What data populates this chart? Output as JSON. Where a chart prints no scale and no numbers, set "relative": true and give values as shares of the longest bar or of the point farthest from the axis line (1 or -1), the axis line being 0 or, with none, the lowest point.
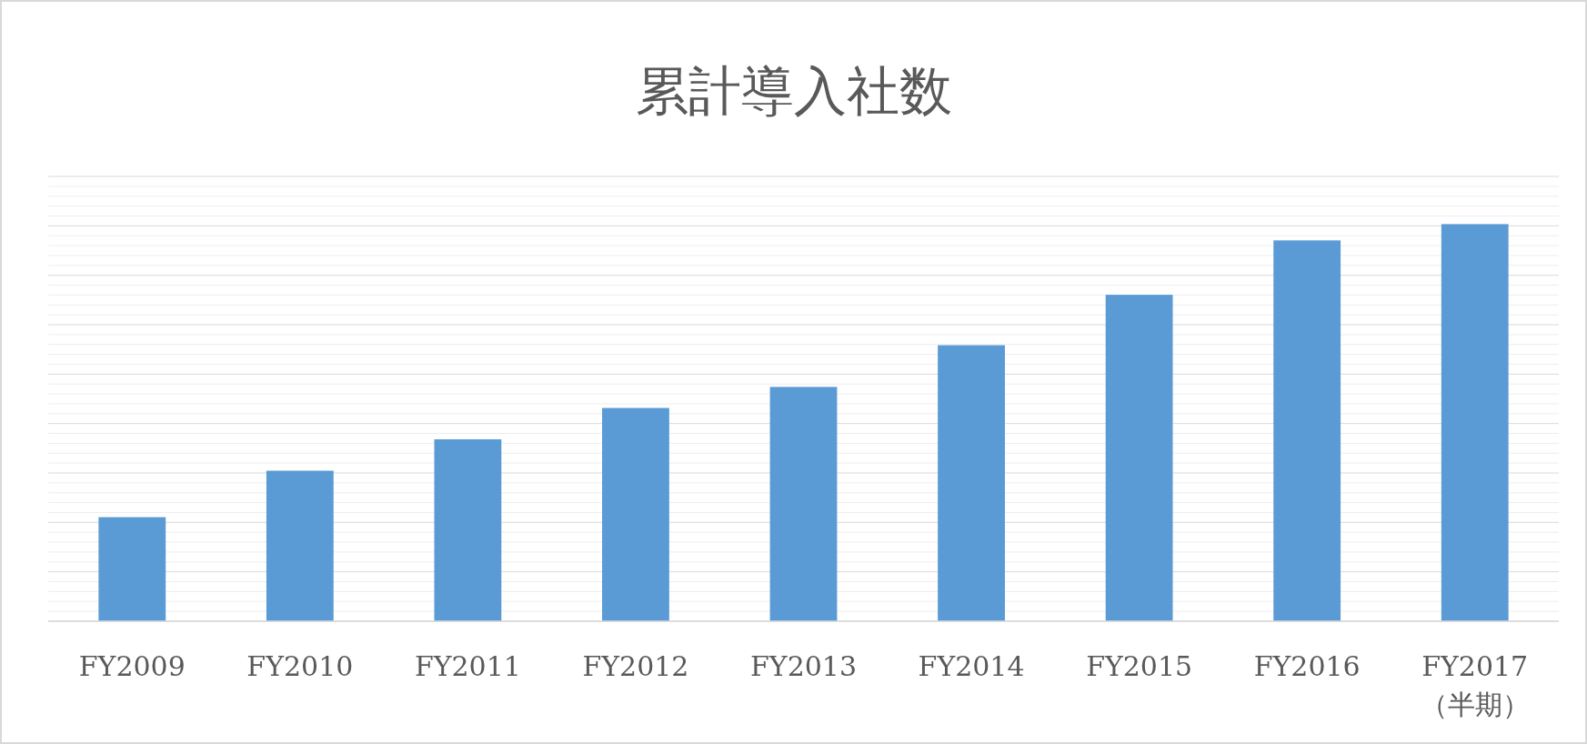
{
  "chart_data": {
    "type": "bar",
    "title": "累計導入社数",
    "relative": true,
    "grid": "y",
    "categories": [
      "FY2009",
      "FY2010",
      "FY2011",
      "FY2012",
      "FY2013",
      "FY2014",
      "FY2015",
      "FY2016",
      "FY2017\n（半期）"
    ],
    "values": [
      0.262,
      0.379,
      0.458,
      0.537,
      0.59,
      0.695,
      0.822,
      0.959,
      1
    ],
    "color": "#5b9bd5"
  }
}
